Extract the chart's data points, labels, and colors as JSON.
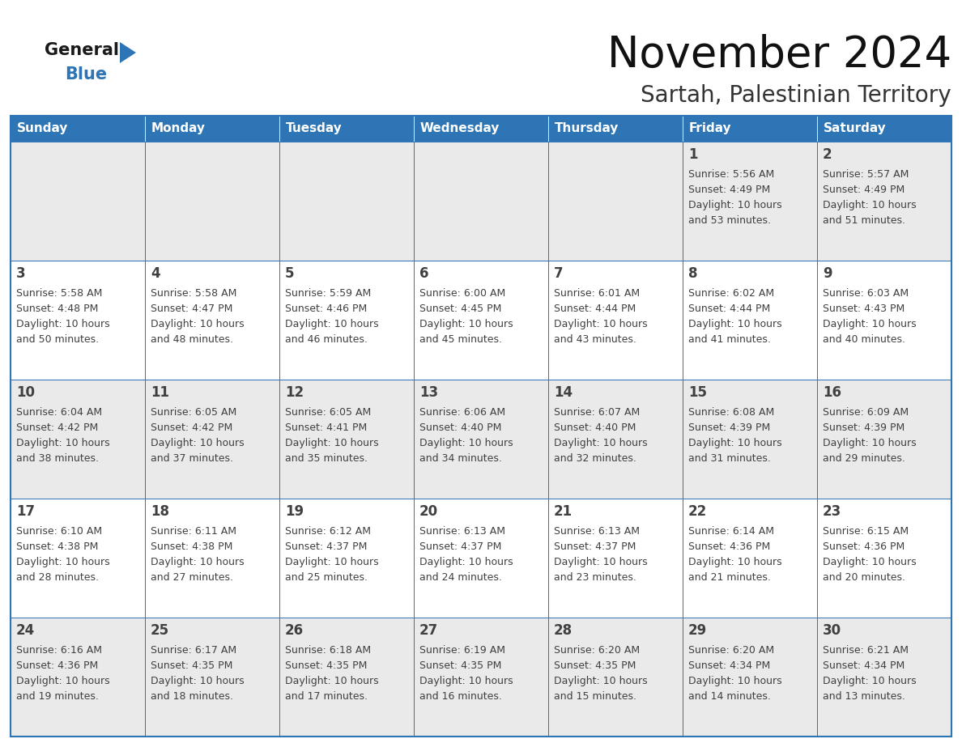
{
  "title": "November 2024",
  "subtitle": "Sartah, Palestinian Territory",
  "days_of_week": [
    "Sunday",
    "Monday",
    "Tuesday",
    "Wednesday",
    "Thursday",
    "Friday",
    "Saturday"
  ],
  "header_bg": "#2E75B6",
  "header_text": "#FFFFFF",
  "cell_bg_odd": "#EAEAEA",
  "cell_bg_even": "#FFFFFF",
  "border_color": "#2E75B6",
  "text_color": "#404040",
  "title_color": "#111111",
  "subtitle_color": "#333333",
  "logo_general_color": "#1a1a1a",
  "logo_blue_color": "#2E75B6",
  "weeks": [
    [
      {
        "day": "",
        "sunrise": "",
        "sunset": "",
        "daylight": ""
      },
      {
        "day": "",
        "sunrise": "",
        "sunset": "",
        "daylight": ""
      },
      {
        "day": "",
        "sunrise": "",
        "sunset": "",
        "daylight": ""
      },
      {
        "day": "",
        "sunrise": "",
        "sunset": "",
        "daylight": ""
      },
      {
        "day": "",
        "sunrise": "",
        "sunset": "",
        "daylight": ""
      },
      {
        "day": "1",
        "sunrise": "5:56 AM",
        "sunset": "4:49 PM",
        "daylight": "10 hours and 53 minutes."
      },
      {
        "day": "2",
        "sunrise": "5:57 AM",
        "sunset": "4:49 PM",
        "daylight": "10 hours and 51 minutes."
      }
    ],
    [
      {
        "day": "3",
        "sunrise": "5:58 AM",
        "sunset": "4:48 PM",
        "daylight": "10 hours and 50 minutes."
      },
      {
        "day": "4",
        "sunrise": "5:58 AM",
        "sunset": "4:47 PM",
        "daylight": "10 hours and 48 minutes."
      },
      {
        "day": "5",
        "sunrise": "5:59 AM",
        "sunset": "4:46 PM",
        "daylight": "10 hours and 46 minutes."
      },
      {
        "day": "6",
        "sunrise": "6:00 AM",
        "sunset": "4:45 PM",
        "daylight": "10 hours and 45 minutes."
      },
      {
        "day": "7",
        "sunrise": "6:01 AM",
        "sunset": "4:44 PM",
        "daylight": "10 hours and 43 minutes."
      },
      {
        "day": "8",
        "sunrise": "6:02 AM",
        "sunset": "4:44 PM",
        "daylight": "10 hours and 41 minutes."
      },
      {
        "day": "9",
        "sunrise": "6:03 AM",
        "sunset": "4:43 PM",
        "daylight": "10 hours and 40 minutes."
      }
    ],
    [
      {
        "day": "10",
        "sunrise": "6:04 AM",
        "sunset": "4:42 PM",
        "daylight": "10 hours and 38 minutes."
      },
      {
        "day": "11",
        "sunrise": "6:05 AM",
        "sunset": "4:42 PM",
        "daylight": "10 hours and 37 minutes."
      },
      {
        "day": "12",
        "sunrise": "6:05 AM",
        "sunset": "4:41 PM",
        "daylight": "10 hours and 35 minutes."
      },
      {
        "day": "13",
        "sunrise": "6:06 AM",
        "sunset": "4:40 PM",
        "daylight": "10 hours and 34 minutes."
      },
      {
        "day": "14",
        "sunrise": "6:07 AM",
        "sunset": "4:40 PM",
        "daylight": "10 hours and 32 minutes."
      },
      {
        "day": "15",
        "sunrise": "6:08 AM",
        "sunset": "4:39 PM",
        "daylight": "10 hours and 31 minutes."
      },
      {
        "day": "16",
        "sunrise": "6:09 AM",
        "sunset": "4:39 PM",
        "daylight": "10 hours and 29 minutes."
      }
    ],
    [
      {
        "day": "17",
        "sunrise": "6:10 AM",
        "sunset": "4:38 PM",
        "daylight": "10 hours and 28 minutes."
      },
      {
        "day": "18",
        "sunrise": "6:11 AM",
        "sunset": "4:38 PM",
        "daylight": "10 hours and 27 minutes."
      },
      {
        "day": "19",
        "sunrise": "6:12 AM",
        "sunset": "4:37 PM",
        "daylight": "10 hours and 25 minutes."
      },
      {
        "day": "20",
        "sunrise": "6:13 AM",
        "sunset": "4:37 PM",
        "daylight": "10 hours and 24 minutes."
      },
      {
        "day": "21",
        "sunrise": "6:13 AM",
        "sunset": "4:37 PM",
        "daylight": "10 hours and 23 minutes."
      },
      {
        "day": "22",
        "sunrise": "6:14 AM",
        "sunset": "4:36 PM",
        "daylight": "10 hours and 21 minutes."
      },
      {
        "day": "23",
        "sunrise": "6:15 AM",
        "sunset": "4:36 PM",
        "daylight": "10 hours and 20 minutes."
      }
    ],
    [
      {
        "day": "24",
        "sunrise": "6:16 AM",
        "sunset": "4:36 PM",
        "daylight": "10 hours and 19 minutes."
      },
      {
        "day": "25",
        "sunrise": "6:17 AM",
        "sunset": "4:35 PM",
        "daylight": "10 hours and 18 minutes."
      },
      {
        "day": "26",
        "sunrise": "6:18 AM",
        "sunset": "4:35 PM",
        "daylight": "10 hours and 17 minutes."
      },
      {
        "day": "27",
        "sunrise": "6:19 AM",
        "sunset": "4:35 PM",
        "daylight": "10 hours and 16 minutes."
      },
      {
        "day": "28",
        "sunrise": "6:20 AM",
        "sunset": "4:35 PM",
        "daylight": "10 hours and 15 minutes."
      },
      {
        "day": "29",
        "sunrise": "6:20 AM",
        "sunset": "4:34 PM",
        "daylight": "10 hours and 14 minutes."
      },
      {
        "day": "30",
        "sunrise": "6:21 AM",
        "sunset": "4:34 PM",
        "daylight": "10 hours and 13 minutes."
      }
    ]
  ]
}
